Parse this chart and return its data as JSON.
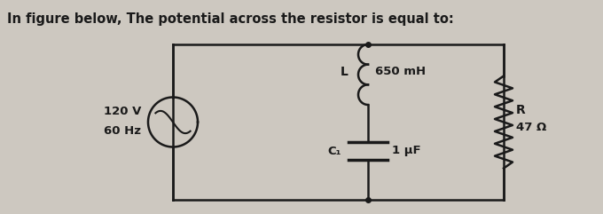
{
  "title": "In figure below, The potential across the resistor is equal to:",
  "bg_color": "#cdc8c0",
  "box_color": "#1a1a1a",
  "text_color": "#1a1a1a",
  "inductor_label": "L",
  "inductor_value": "650 mH",
  "resistor_label": "R",
  "resistor_value": "47 Ω",
  "capacitor_label": "C₁",
  "capacitor_value": "1 μF",
  "source_v": "120 V",
  "source_hz": "60 Hz"
}
